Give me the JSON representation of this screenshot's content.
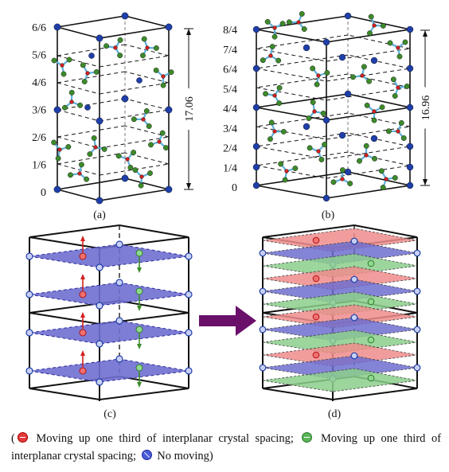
{
  "panel_a": {
    "label": "(a)",
    "ticks": [
      "0",
      "1/6",
      "2/6",
      "3/6",
      "4/6",
      "5/6",
      "6/6"
    ],
    "dimension": "17.06"
  },
  "panel_b": {
    "label": "(b)",
    "ticks": [
      "0",
      "1/4",
      "2/4",
      "3/4",
      "4/4",
      "5/4",
      "6/4",
      "7/4",
      "8/4"
    ],
    "dimension": "16.96"
  },
  "panel_c": {
    "label": "(c)"
  },
  "panel_d": {
    "label": "(d)"
  },
  "caption": {
    "open": "(",
    "red_text": "Moving up one third of interplanar crystal spacing;",
    "green_text": "Moving up one third of interplanar crystal spacing;",
    "blue_text": "No moving)"
  },
  "colors": {
    "atom_blue": "#1f3fa8",
    "atom_green": "#3d8a2a",
    "atom_red": "#d42020",
    "bond_cyan": "#5fb0d8",
    "plane_blue": "#6f6fd0",
    "plane_red": "#f08c8c",
    "plane_green": "#8ccf8c",
    "arrow_purple": "#6a0f6a"
  }
}
